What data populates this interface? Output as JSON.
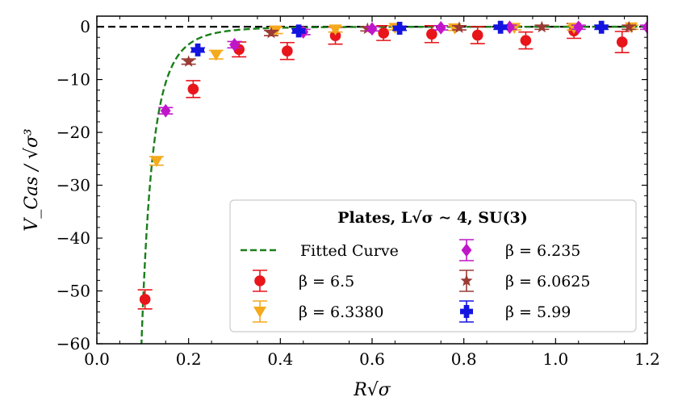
{
  "chart_data": {
    "type": "scatter",
    "title": "",
    "xlabel": "R√σ",
    "ylabel": "V_Cas / √σ³",
    "xlim": [
      0.0,
      1.2
    ],
    "ylim": [
      -60,
      2
    ],
    "xticks": [
      0.0,
      0.2,
      0.4,
      0.6,
      0.8,
      1.0,
      1.2
    ],
    "xtick_labels": [
      "0.0",
      "0.2",
      "0.4",
      "0.6",
      "0.8",
      "1.0",
      "1.2"
    ],
    "yticks": [
      0,
      -10,
      -20,
      -30,
      -40,
      -50,
      -60
    ],
    "ytick_labels": [
      "0",
      "−10",
      "−20",
      "−30",
      "−40",
      "−50",
      "−60"
    ],
    "reference_line": {
      "y": 0,
      "style": "dashed",
      "color": "#000000"
    },
    "legend": {
      "title": "Plates, L√σ ∼ 4, SU(3)",
      "location": "lower-right",
      "columns": 2
    },
    "series": [
      {
        "name": "β = 6.5",
        "marker": "circle",
        "color": "#e8151b",
        "x": [
          0.105,
          0.21,
          0.31,
          0.415,
          0.52,
          0.625,
          0.73,
          0.83,
          0.935,
          1.04,
          1.145
        ],
        "y": [
          -51.6,
          -11.8,
          -4.3,
          -4.6,
          -1.7,
          -1.2,
          -1.4,
          -1.6,
          -2.6,
          -0.8,
          -2.9
        ],
        "err": [
          1.8,
          1.6,
          1.4,
          1.6,
          1.6,
          1.4,
          1.6,
          1.6,
          1.6,
          1.4,
          2.0
        ]
      },
      {
        "name": "β = 6.3380",
        "marker": "triangle-down",
        "color": "#f5a91c",
        "x": [
          0.13,
          0.26,
          0.39,
          0.52,
          0.65,
          0.78,
          0.91,
          1.04,
          1.165
        ],
        "y": [
          -25.4,
          -5.3,
          -0.7,
          -0.5,
          -0.2,
          -0.3,
          -0.2,
          -0.2,
          -0.1
        ],
        "err": [
          0.8,
          0.8,
          0.6,
          0.5,
          0.4,
          0.4,
          0.4,
          0.4,
          0.4
        ]
      },
      {
        "name": "β = 6.0625",
        "marker": "star",
        "color": "#9a3b34",
        "x": [
          0.2,
          0.38,
          0.59,
          0.79,
          0.97,
          1.16
        ],
        "y": [
          -6.6,
          -1.2,
          -0.4,
          -0.2,
          -0.1,
          -0.1
        ],
        "err": [
          0.5,
          0.5,
          0.4,
          0.4,
          0.4,
          0.4
        ]
      },
      {
        "name": "β = 6.235",
        "marker": "diamond",
        "color": "#c016c9",
        "x": [
          0.15,
          0.3,
          0.45,
          0.6,
          0.75,
          0.9,
          1.05,
          1.2
        ],
        "y": [
          -15.9,
          -3.4,
          -1.0,
          -0.4,
          -0.2,
          -0.1,
          -0.1,
          -0.1
        ],
        "err": [
          0.6,
          0.6,
          0.5,
          0.4,
          0.4,
          0.4,
          0.4,
          0.4
        ]
      },
      {
        "name": "β = 5.99",
        "marker": "plus",
        "color": "#1414e0",
        "x": [
          0.22,
          0.44,
          0.66,
          0.88,
          1.1
        ],
        "y": [
          -4.4,
          -0.8,
          -0.3,
          -0.1,
          -0.1
        ],
        "err": [
          0.4,
          0.4,
          0.4,
          0.4,
          0.4
        ]
      }
    ],
    "fit_curve": {
      "name": "Fitted Curve",
      "color": "#1a7f1a",
      "style": "dashed",
      "form": "-a / x^4",
      "a": 0.00537
    }
  }
}
